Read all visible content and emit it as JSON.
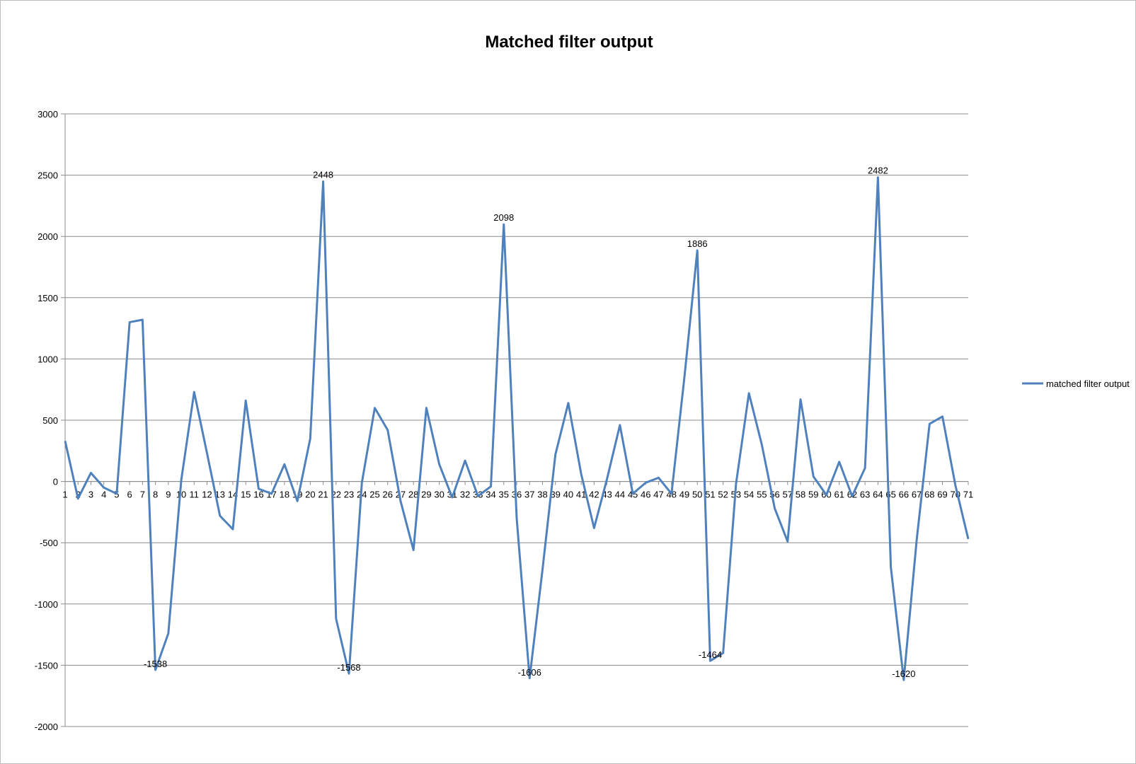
{
  "chart_data": {
    "type": "line",
    "title": "Matched filter output",
    "xlabel": "",
    "ylabel": "",
    "ylim": [
      -2000,
      3000
    ],
    "ytick_step": 500,
    "grid": true,
    "legend_position": "right",
    "line_color": "#4f81bd",
    "categories": [
      "1",
      "2",
      "3",
      "4",
      "5",
      "6",
      "7",
      "8",
      "9",
      "10",
      "11",
      "12",
      "13",
      "14",
      "15",
      "16",
      "17",
      "18",
      "19",
      "20",
      "21",
      "22",
      "23",
      "24",
      "25",
      "26",
      "27",
      "28",
      "29",
      "30",
      "31",
      "32",
      "33",
      "34",
      "35",
      "36",
      "37",
      "38",
      "39",
      "40",
      "41",
      "42",
      "43",
      "44",
      "45",
      "46",
      "47",
      "48",
      "49",
      "50",
      "51",
      "52",
      "53",
      "54",
      "55",
      "56",
      "57",
      "58",
      "59",
      "60",
      "61",
      "62",
      "63",
      "64",
      "65",
      "66",
      "67",
      "68",
      "69",
      "70",
      "71"
    ],
    "series": [
      {
        "name": "matched filter output",
        "values": [
          330,
          -140,
          70,
          -50,
          -100,
          1300,
          1320,
          -1538,
          -1240,
          10,
          730,
          230,
          -280,
          -390,
          660,
          -60,
          -100,
          140,
          -160,
          350,
          2448,
          -1120,
          -1568,
          -10,
          600,
          420,
          -160,
          -560,
          600,
          140,
          -130,
          170,
          -120,
          -40,
          2098,
          -300,
          -1606,
          -720,
          220,
          640,
          60,
          -380,
          20,
          460,
          -100,
          -10,
          30,
          -100,
          850,
          1886,
          -1464,
          -1400,
          -20,
          720,
          300,
          -220,
          -490,
          670,
          40,
          -110,
          160,
          -120,
          110,
          2482,
          -700,
          -1620,
          -480,
          470,
          530,
          -30,
          -470
        ]
      }
    ],
    "data_labels": [
      {
        "index": 7,
        "text": "-1538"
      },
      {
        "index": 20,
        "text": "2448"
      },
      {
        "index": 22,
        "text": "-1568"
      },
      {
        "index": 34,
        "text": "2098"
      },
      {
        "index": 36,
        "text": "-1606"
      },
      {
        "index": 49,
        "text": "1886"
      },
      {
        "index": 50,
        "text": "-1464"
      },
      {
        "index": 63,
        "text": "2482"
      },
      {
        "index": 65,
        "text": "-1620"
      }
    ]
  }
}
